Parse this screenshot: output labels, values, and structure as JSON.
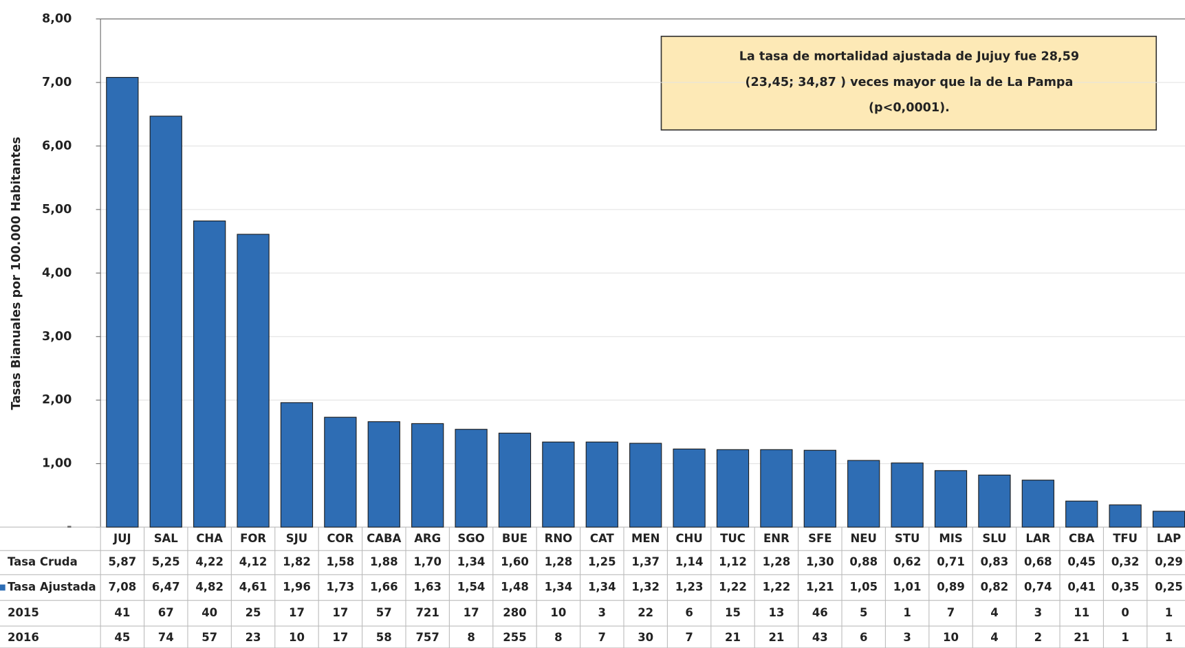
{
  "chart_data": {
    "type": "bar",
    "y_label": "Tasas Bianuales por 100.000 Habitantes",
    "annotation": [
      "La tasa de mortalidad ajustada de Jujuy fue 28,59",
      "(23,45; 34,87 ) veces mayor que la de La Pampa",
      "(p<0,0001)."
    ],
    "categories": [
      "JUJ",
      "SAL",
      "CHA",
      "FOR",
      "SJU",
      "COR",
      "CABA",
      "ARG",
      "SGO",
      "BUE",
      "RNO",
      "CAT",
      "MEN",
      "CHU",
      "TUC",
      "ENR",
      "SFE",
      "NEU",
      "STU",
      "MIS",
      "SLU",
      "LAR",
      "CBA",
      "TFU",
      "LAP"
    ],
    "series": [
      {
        "name": "Tasa Ajustada",
        "color": "#2e6db4",
        "values": [
          7.08,
          6.47,
          4.82,
          4.61,
          1.96,
          1.73,
          1.66,
          1.63,
          1.54,
          1.48,
          1.34,
          1.34,
          1.32,
          1.23,
          1.22,
          1.22,
          1.21,
          1.05,
          1.01,
          0.89,
          0.82,
          0.74,
          0.41,
          0.35,
          0.25
        ],
        "value_labels": [
          "7,08",
          "6,47",
          "4,82",
          "4,61",
          "1,96",
          "1,73",
          "1,66",
          "1,63",
          "1,54",
          "1,48",
          "1,34",
          "1,34",
          "1,32",
          "1,23",
          "1,22",
          "1,22",
          "1,21",
          "1,05",
          "1,01",
          "0,89",
          "0,82",
          "0,74",
          "0,41",
          "0,35",
          "0,25"
        ]
      }
    ],
    "data_table": [
      {
        "name": "Tasa Cruda",
        "values": [
          5.87,
          5.25,
          4.22,
          4.12,
          1.82,
          1.58,
          1.88,
          1.7,
          1.34,
          1.6,
          1.28,
          1.25,
          1.37,
          1.14,
          1.12,
          1.28,
          1.3,
          0.88,
          0.62,
          0.71,
          0.83,
          0.68,
          0.45,
          0.32,
          0.29
        ],
        "value_labels": [
          "5,87",
          "5,25",
          "4,22",
          "4,12",
          "1,82",
          "1,58",
          "1,88",
          "1,70",
          "1,34",
          "1,60",
          "1,28",
          "1,25",
          "1,37",
          "1,14",
          "1,12",
          "1,28",
          "1,30",
          "0,88",
          "0,62",
          "0,71",
          "0,83",
          "0,68",
          "0,45",
          "0,32",
          "0,29"
        ]
      },
      {
        "name": "2015",
        "values": [
          41,
          67,
          40,
          25,
          17,
          17,
          57,
          721,
          17,
          280,
          10,
          3,
          22,
          6,
          15,
          13,
          46,
          5,
          1,
          7,
          4,
          3,
          11,
          0,
          1
        ]
      },
      {
        "name": "2016",
        "values": [
          45,
          74,
          57,
          23,
          10,
          17,
          58,
          757,
          8,
          255,
          8,
          7,
          30,
          7,
          21,
          21,
          43,
          6,
          3,
          10,
          4,
          2,
          21,
          1,
          1
        ]
      }
    ],
    "ylim": [
      0,
      8
    ],
    "yticks": [
      {
        "value": 0,
        "label": "-"
      },
      {
        "value": 1,
        "label": "1,00"
      },
      {
        "value": 2,
        "label": "2,00"
      },
      {
        "value": 3,
        "label": "3,00"
      },
      {
        "value": 4,
        "label": "4,00"
      },
      {
        "value": 5,
        "label": "5,00"
      },
      {
        "value": 6,
        "label": "6,00"
      },
      {
        "value": 7,
        "label": "7,00"
      },
      {
        "value": 8,
        "label": "8,00"
      }
    ],
    "grid": true
  }
}
